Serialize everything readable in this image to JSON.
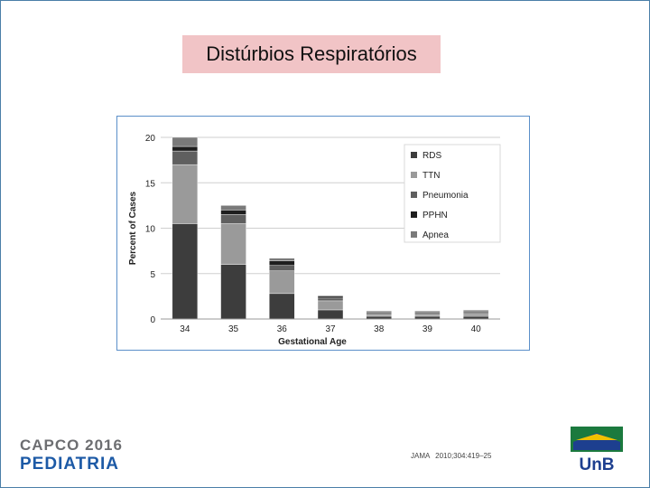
{
  "slide": {
    "title": "Distúrbios Respiratórios",
    "citation": {
      "journal": "JAMA",
      "volume": "2010;304:419–25"
    },
    "logo_left": {
      "line1": "CAPCO 2016",
      "line2": "PEDIATRIA"
    },
    "logo_right": {
      "text": "UnB"
    },
    "colors": {
      "title_bg": "#f1c4c6",
      "frame": "#4a7fa8",
      "chart_border": "#5b8fc9",
      "logo_blue": "#1d5aa6",
      "logo_orange": "#f29320",
      "logo_gray": "#6d6e71",
      "unb_green": "#1b7a3e",
      "unb_blue": "#1d3f8f"
    }
  },
  "chart_data": {
    "type": "bar",
    "stacked": true,
    "title": "",
    "xlabel": "Gestational Age",
    "ylabel": "Percent of Cases",
    "categories": [
      "34",
      "35",
      "36",
      "37",
      "38",
      "39",
      "40"
    ],
    "ylim": [
      0,
      20
    ],
    "yticks": [
      0,
      5,
      10,
      15,
      20
    ],
    "grid": true,
    "legend_position": "top-right",
    "series": [
      {
        "name": "RDS",
        "color": "#3d3d3d",
        "values": [
          10.5,
          6.0,
          2.8,
          1.0,
          0.3,
          0.3,
          0.3
        ]
      },
      {
        "name": "TTN",
        "color": "#9a9a9a",
        "values": [
          6.5,
          4.5,
          2.5,
          1.0,
          0.2,
          0.2,
          0.3
        ]
      },
      {
        "name": "Pneumonia",
        "color": "#5f5f5f",
        "values": [
          1.5,
          1.0,
          0.6,
          0.3,
          0.2,
          0.2,
          0.2
        ]
      },
      {
        "name": "PPHN",
        "color": "#1e1e1e",
        "values": [
          0.5,
          0.5,
          0.5,
          0.2,
          0.1,
          0.1,
          0.1
        ]
      },
      {
        "name": "Apnea",
        "color": "#7a7a7a",
        "values": [
          1.0,
          0.5,
          0.3,
          0.1,
          0.1,
          0.1,
          0.1
        ]
      }
    ]
  }
}
